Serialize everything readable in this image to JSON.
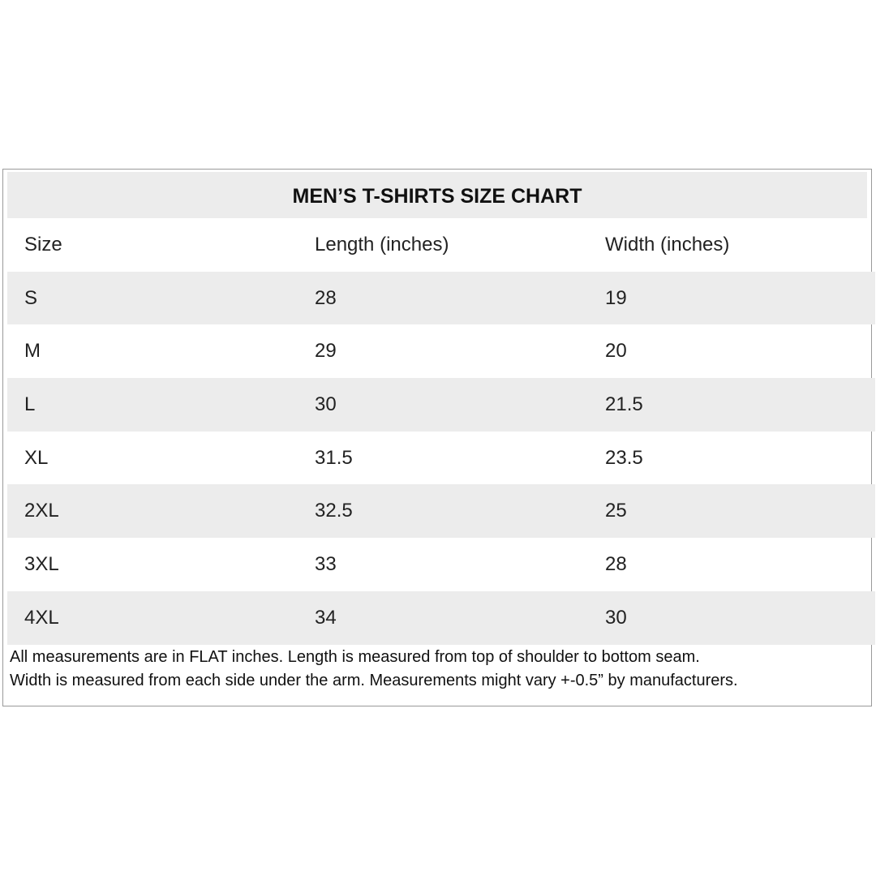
{
  "title": "MEN’S T-SHIRTS SIZE CHART",
  "columns": [
    "Size",
    "Length (inches)",
    "Width (inches)"
  ],
  "rows": [
    [
      "S",
      "28",
      "19"
    ],
    [
      "M",
      "29",
      "20"
    ],
    [
      "L",
      "30",
      "21.5"
    ],
    [
      "XL",
      "31.5",
      "23.5"
    ],
    [
      "2XL",
      "32.5",
      "25"
    ],
    [
      "3XL",
      "33",
      "28"
    ],
    [
      "4XL",
      "34",
      "30"
    ]
  ],
  "notes": [
    "All measurements are in FLAT inches. Length is measured from top of shoulder to bottom seam.",
    "Width is measured from each side under the arm. Measurements might vary +-0.5” by manufacturers."
  ],
  "colors": {
    "stripe": "#ececec",
    "border": "#9a9a9a"
  }
}
